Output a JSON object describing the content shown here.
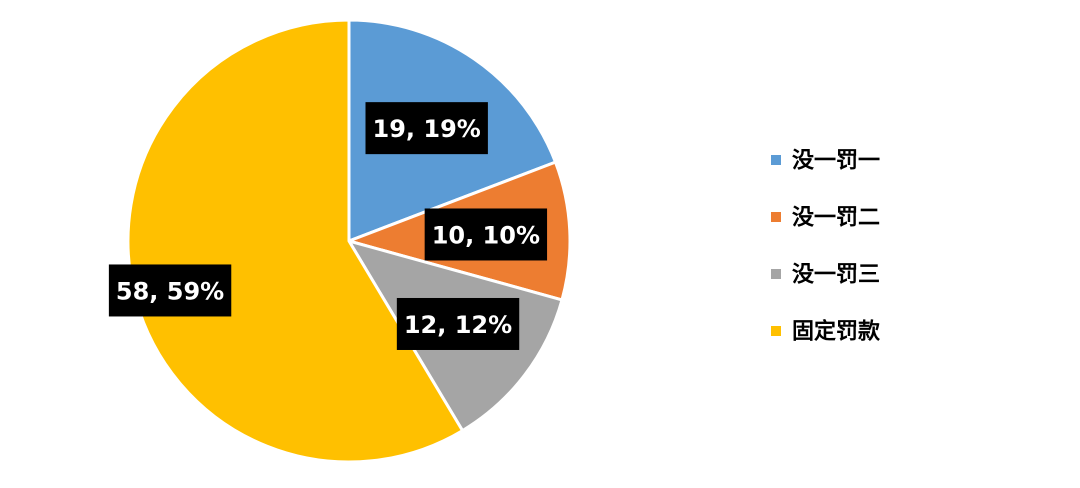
{
  "chart_data": {
    "type": "pie",
    "categories": [
      "没一罚一",
      "没一罚二",
      "没一罚三",
      "固定罚款"
    ],
    "values": [
      19,
      10,
      12,
      58
    ],
    "percents": [
      19,
      10,
      12,
      59
    ],
    "data_labels": [
      "19, 19%",
      "10, 10%",
      "12, 12%",
      "58, 59%"
    ],
    "colors": [
      "#5B9BD5",
      "#ED7D31",
      "#A5A5A5",
      "#FFC000"
    ],
    "start_angle": "12 o'clock",
    "direction": "clockwise",
    "legend": {
      "position": "right",
      "entries": [
        "没一罚一",
        "没一罚二",
        "没一罚三",
        "固定罚款"
      ]
    }
  }
}
